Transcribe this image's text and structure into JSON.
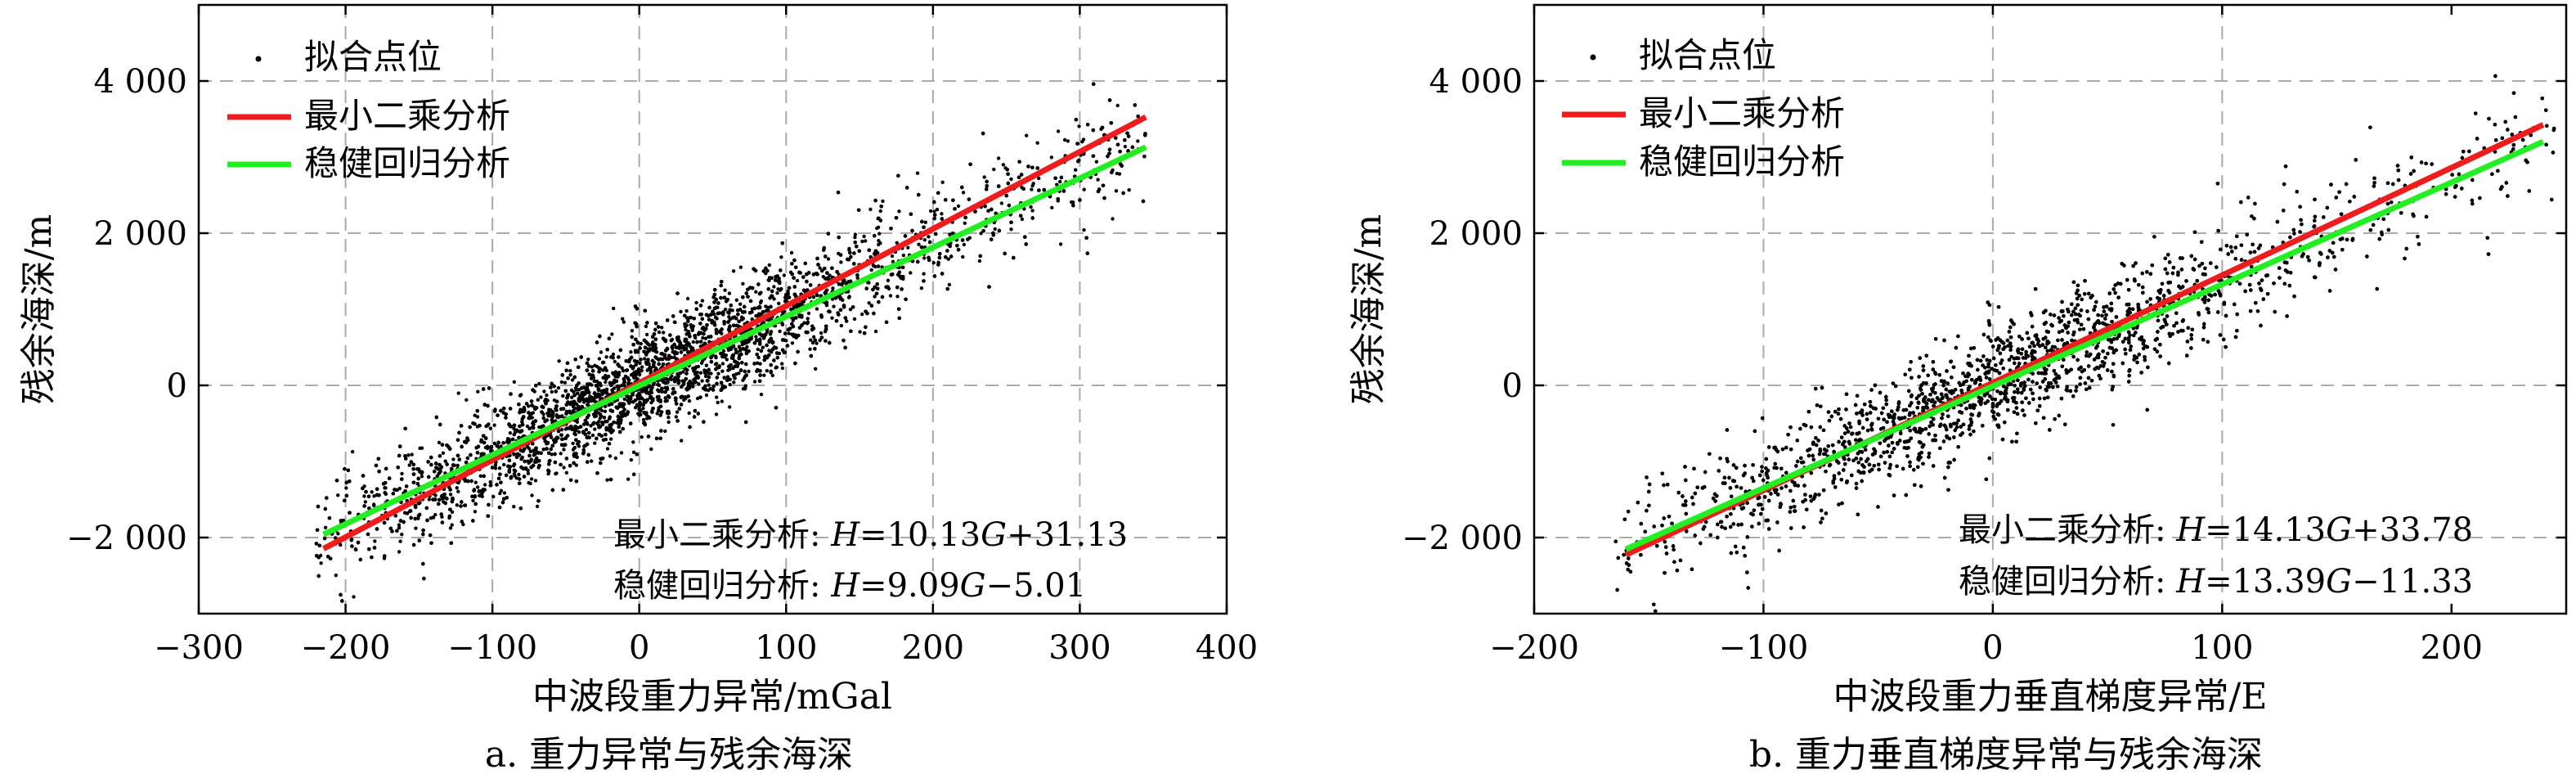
{
  "chart_data": [
    {
      "type": "scatter",
      "caption": "a. 重力异常与残余海深",
      "xlabel": "中波段重力异常/mGal",
      "ylabel": "残余海深/m",
      "xlim": [
        -300,
        400
      ],
      "ylim": [
        -3000,
        5000
      ],
      "x_ticks": [
        -300,
        -200,
        -100,
        0,
        100,
        200,
        300,
        400
      ],
      "x_tick_labels": [
        "−300",
        "−200",
        "−100",
        "0",
        "100",
        "200",
        "300",
        "400"
      ],
      "y_ticks": [
        -2000,
        0,
        2000,
        4000
      ],
      "y_tick_labels": [
        "−2 000",
        "0",
        "2 000",
        "4 000"
      ],
      "grid": true,
      "legend_position": "top-left",
      "legend": [
        "拟合点位",
        "最小二乘分析",
        "稳健回归分析"
      ],
      "fit_lines": [
        {
          "name": "最小二乘分析",
          "color": "#ee1c1c",
          "slope": 10.13,
          "intercept": 31.13,
          "x_range": [
            -215,
            345
          ]
        },
        {
          "name": "稳健回归分析",
          "color": "#22ee22",
          "slope": 9.09,
          "intercept": -5.01,
          "x_range": [
            -215,
            345
          ]
        }
      ],
      "equations": [
        {
          "label": "最小二乘分析: ",
          "H": "H",
          "eq1": "=10.13",
          "G": "G",
          "eq2": "+31.13"
        },
        {
          "label": "稳健回归分析: ",
          "H": "H",
          "eq1": "=9.09",
          "G": "G",
          "eq2": "−5.01"
        }
      ],
      "scatter_summary": {
        "x_range": [
          -220,
          345
        ],
        "slope": 9.4,
        "intercept": 0,
        "spread": 380,
        "count": 9000,
        "color": "#000000"
      }
    },
    {
      "type": "scatter",
      "caption": "b. 重力垂直梯度异常与残余海深",
      "xlabel": "中波段重力垂直梯度异常/E",
      "ylabel": "残余海深/m",
      "xlim": [
        -200,
        250
      ],
      "ylim": [
        -3000,
        5000
      ],
      "x_ticks": [
        -200,
        -100,
        0,
        100,
        200
      ],
      "x_tick_labels": [
        "−200",
        "−100",
        "0",
        "100",
        "200"
      ],
      "y_ticks": [
        -2000,
        0,
        2000,
        4000
      ],
      "y_tick_labels": [
        "−2 000",
        "0",
        "2 000",
        "4 000"
      ],
      "grid": true,
      "legend_position": "top-left",
      "legend": [
        "拟合点位",
        "最小二乘分析",
        "稳健回归分析"
      ],
      "fit_lines": [
        {
          "name": "最小二乘分析",
          "color": "#ee1c1c",
          "slope": 14.13,
          "intercept": 33.78,
          "x_range": [
            -160,
            240
          ]
        },
        {
          "name": "稳健回归分析",
          "color": "#22ee22",
          "slope": 13.39,
          "intercept": -11.33,
          "x_range": [
            -160,
            240
          ]
        }
      ],
      "equations": [
        {
          "label": "最小二乘分析: ",
          "H": "H",
          "eq1": "=14.13",
          "G": "G",
          "eq2": "+33.78"
        },
        {
          "label": "稳健回归分析: ",
          "H": "H",
          "eq1": "=13.39",
          "G": "G",
          "eq2": "−11.33"
        }
      ],
      "scatter_summary": {
        "x_range": [
          -165,
          245
        ],
        "slope": 13.5,
        "intercept": 0,
        "spread": 400,
        "count": 9000,
        "color": "#000000"
      }
    }
  ]
}
